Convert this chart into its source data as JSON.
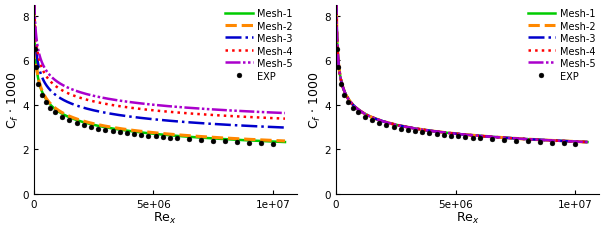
{
  "xlim": [
    0,
    11000000.0
  ],
  "ylim": [
    0,
    8.5
  ],
  "xlabel": "Re_x",
  "ylabel": "C_f * 1000",
  "legend_entries": [
    "Mesh-1",
    "Mesh-2",
    "Mesh-3",
    "Mesh-4",
    "Mesh-5",
    "EXP"
  ],
  "mesh_colors": [
    "#00cc00",
    "#ff8800",
    "#0000cc",
    "#ff0000",
    "#aa00cc"
  ],
  "exp_color": "#000000",
  "background": "#ffffff",
  "xticks": [
    0,
    5000000,
    10000000
  ],
  "xtick_labels": [
    "0",
    "5e+06",
    "1e+07"
  ],
  "yticks": [
    0,
    2,
    4,
    6,
    8
  ],
  "left_offsets": [
    0.0,
    0.05,
    0.65,
    1.05,
    1.3
  ],
  "left_factors": [
    1.0,
    1.0,
    1.0,
    1.0,
    1.0
  ],
  "right_offsets": [
    0.0,
    0.0,
    0.0,
    0.0,
    0.0
  ],
  "right_factors": [
    1.0,
    1.0,
    1.0,
    1.0,
    1.0
  ],
  "exp_rex": [
    50000,
    100000,
    200000,
    350000,
    500000,
    700000,
    900000,
    1200000,
    1500000,
    1800000,
    2100000,
    2400000,
    2700000,
    3000000,
    3300000,
    3600000,
    3900000,
    4200000,
    4500000,
    4800000,
    5100000,
    5400000,
    5700000,
    6000000,
    6500000,
    7000000,
    7500000,
    8000000,
    8500000,
    9000000,
    9500000,
    10000000
  ],
  "linewidths": [
    1.8,
    2.2,
    1.8,
    1.8,
    1.8
  ]
}
